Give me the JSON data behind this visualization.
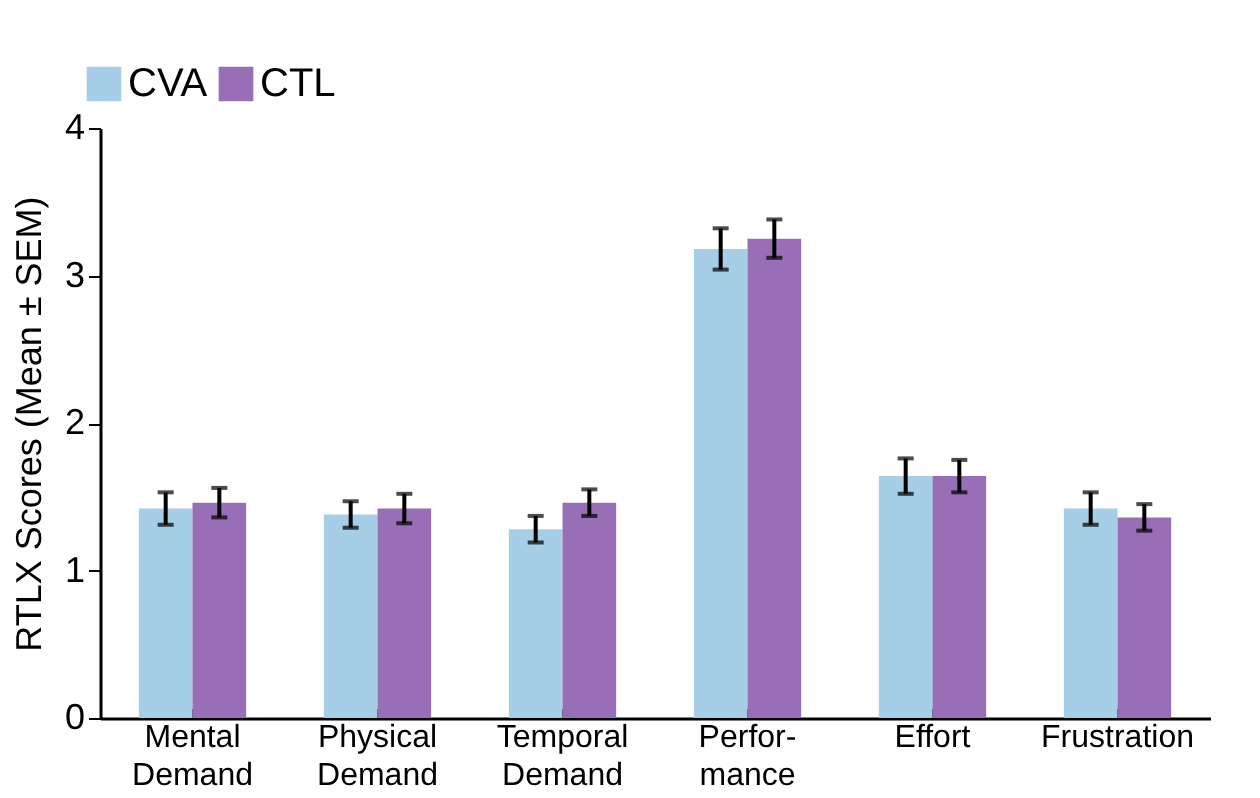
{
  "chart_data": {
    "type": "bar",
    "ylabel": "RTLX Scores (Mean ± SEM)",
    "categories": [
      "Mental Demand",
      "Physical Demand",
      "Temporal Demand",
      "Perfor-mance",
      "Effort",
      "Frustration"
    ],
    "series": [
      {
        "name": "CVA",
        "color": "#a6cee6",
        "values": [
          1.42,
          1.38,
          1.28,
          3.18,
          1.64,
          1.42
        ],
        "errors": [
          0.11,
          0.09,
          0.09,
          0.14,
          0.12,
          0.11
        ]
      },
      {
        "name": "CTL",
        "color": "#986fb6",
        "values": [
          1.46,
          1.42,
          1.46,
          3.25,
          1.64,
          1.36
        ],
        "errors": [
          0.1,
          0.1,
          0.09,
          0.13,
          0.11,
          0.09
        ]
      }
    ],
    "ylim": [
      0,
      4
    ],
    "yticks": [
      0,
      1,
      2,
      3,
      4
    ],
    "grid": false,
    "legend": "top left"
  }
}
